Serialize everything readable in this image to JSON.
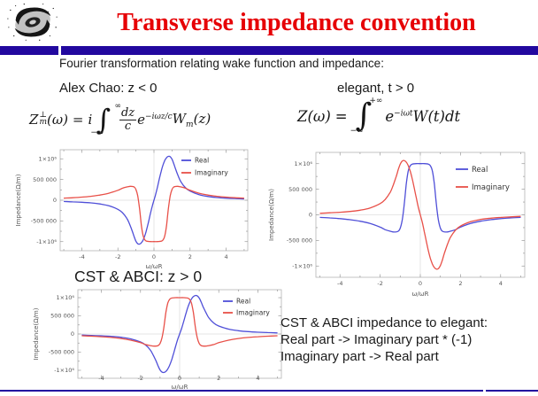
{
  "header": {
    "title": "Transverse impedance convention",
    "title_color": "#e60005",
    "bar_color": "#22089f",
    "logo": "ihep-galaxy-logo"
  },
  "slide": {
    "intro": "Fourier transformation relating wake function and impedance:",
    "chao_label": "Alex Chao:  z < 0",
    "elegant_label": "elegant, t > 0",
    "cst_label": "CST & ABCI: z > 0",
    "note_line1": "CST & ABCI impedance to elegant:",
    "note_line2": "Real part -> Imaginary part * (-1)",
    "note_line3": "Imaginary part -> Real part"
  },
  "formula_chao": {
    "z": "Z",
    "z_sup": "⊥",
    "z_sub": "m",
    "lhs_rest": "(ω)",
    "equals": "=",
    "prefix": "i",
    "integral": "∫",
    "int_upper": "∞",
    "int_lower": "−∞",
    "frac_num": "dz",
    "frac_den": "c",
    "exp_base": "e",
    "exp_power": "−iωz/c",
    "wake": "W",
    "wake_sub": "m",
    "wake_arg": "(z)"
  },
  "formula_elegant": {
    "lhs": "Z(ω)",
    "equals": "=",
    "integral": "∫",
    "int_upper": "+∞",
    "int_lower": "−∞",
    "exp_base": "e",
    "exp_power": "−iωt",
    "wake": "W(t)dt"
  },
  "chart_data": {
    "type": "line",
    "xlabel": "ω/ωR",
    "ylabel": "Impedance(Ω/m)",
    "xlim": [
      -5.2,
      5.2
    ],
    "ylim": [
      -1220000,
      1220000
    ],
    "xticks": [
      -4,
      -2,
      0,
      2,
      4
    ],
    "yticks": [
      {
        "v": 1000000,
        "label": "1×10⁶"
      },
      {
        "v": 500000,
        "label": "500 000"
      },
      {
        "v": 0,
        "label": "0"
      },
      {
        "v": -500000,
        "label": "-500 000"
      },
      {
        "v": -1000000,
        "label": "-1×10⁶"
      }
    ],
    "yticks_minor": [
      -750000,
      -250000,
      250000,
      750000
    ],
    "legend_position": "top-right-inside",
    "grid": "zero-axes-only",
    "colors": {
      "real": "#4f4fd8",
      "imaginary": "#e85048"
    },
    "base_curves": {
      "S_odd": {
        "x": [
          -5,
          -4.5,
          -4,
          -3.5,
          -3,
          -2.5,
          -2,
          -1.75,
          -1.5,
          -1.35,
          -1.2,
          -1.1,
          -1.0,
          -0.9,
          -0.8,
          -0.7,
          -0.6,
          -0.5,
          -0.4,
          -0.3,
          -0.2,
          -0.1,
          0,
          0.1,
          0.2,
          0.3,
          0.4,
          0.5,
          0.6,
          0.7,
          0.8,
          0.9,
          1.0,
          1.1,
          1.2,
          1.35,
          1.5,
          1.75,
          2,
          2.5,
          3,
          3.5,
          4,
          4.5,
          5
        ],
        "y": [
          -30000,
          -40000,
          -50000,
          -65000,
          -90000,
          -135000,
          -220000,
          -300000,
          -440000,
          -580000,
          -750000,
          -880000,
          -990000,
          -1050000,
          -1060000,
          -1030000,
          -960000,
          -850000,
          -700000,
          -520000,
          -330000,
          -150000,
          0,
          150000,
          330000,
          520000,
          700000,
          850000,
          960000,
          1030000,
          1060000,
          1050000,
          990000,
          880000,
          750000,
          580000,
          440000,
          300000,
          220000,
          135000,
          90000,
          65000,
          50000,
          40000,
          30000
        ]
      },
      "F_even": {
        "x": [
          -5,
          -4.5,
          -4,
          -3.5,
          -3,
          -2.5,
          -2,
          -1.75,
          -1.5,
          -1.3,
          -1.1,
          -1.0,
          -0.9,
          -0.8,
          -0.7,
          -0.6,
          -0.5,
          -0.4,
          -0.2,
          0,
          0.2,
          0.4,
          0.5,
          0.6,
          0.7,
          0.8,
          0.9,
          1.0,
          1.1,
          1.3,
          1.5,
          1.75,
          2,
          2.5,
          3,
          3.5,
          4,
          4.5,
          5
        ],
        "y": [
          -50000,
          -60000,
          -75000,
          -95000,
          -125000,
          -170000,
          -240000,
          -290000,
          -320000,
          -335000,
          -320000,
          -260000,
          -100000,
          200000,
          600000,
          860000,
          960000,
          990000,
          1000000,
          1000000,
          1000000,
          990000,
          960000,
          860000,
          600000,
          200000,
          -100000,
          -260000,
          -320000,
          -335000,
          -320000,
          -290000,
          -240000,
          -170000,
          -125000,
          -95000,
          -75000,
          -60000,
          -50000
        ]
      }
    },
    "charts": [
      {
        "id": "chao",
        "caption": "Alex Chao:  z < 0",
        "series": [
          {
            "name": "Real",
            "curve": "S_odd",
            "scale": 1,
            "color": "#4f4fd8"
          },
          {
            "name": "Imaginary",
            "curve": "F_even",
            "scale": -1,
            "color": "#e85048"
          }
        ]
      },
      {
        "id": "elegant",
        "caption": "elegant, t > 0",
        "series": [
          {
            "name": "Real",
            "curve": "F_even",
            "scale": 1,
            "color": "#4f4fd8"
          },
          {
            "name": "Imaginary",
            "curve": "S_odd",
            "scale": -1,
            "color": "#e85048"
          }
        ]
      },
      {
        "id": "cst",
        "caption": "CST & ABCI: z > 0",
        "series": [
          {
            "name": "Real",
            "curve": "S_odd",
            "scale": 1,
            "color": "#4f4fd8"
          },
          {
            "name": "Imaginary",
            "curve": "F_even",
            "scale": 1,
            "color": "#e85048"
          }
        ]
      }
    ]
  }
}
